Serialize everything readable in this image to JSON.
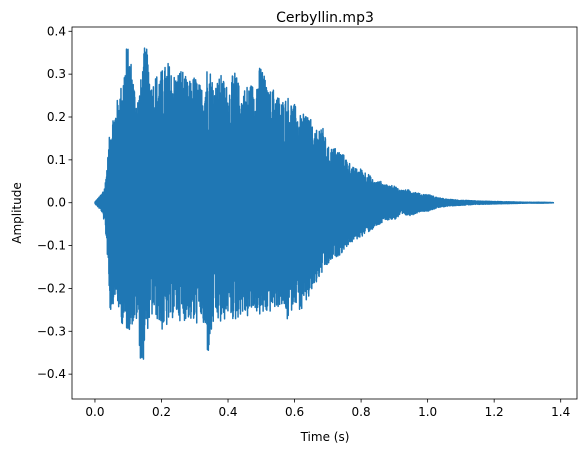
{
  "chart_data": {
    "type": "line",
    "title": "Cerbyllin.mp3",
    "xlabel": "Time (s)",
    "ylabel": "Amplitude",
    "xlim": [
      -0.069,
      1.449
    ],
    "ylim": [
      -0.458,
      0.41
    ],
    "xticks": [
      0.0,
      0.2,
      0.4,
      0.6,
      0.8,
      1.0,
      1.2,
      1.4
    ],
    "xtick_labels": [
      "0.0",
      "0.2",
      "0.4",
      "0.6",
      "0.8",
      "1.0",
      "1.2",
      "1.4"
    ],
    "yticks": [
      -0.4,
      -0.3,
      -0.2,
      -0.1,
      0.0,
      0.1,
      0.2,
      0.3,
      0.4
    ],
    "ytick_labels": [
      "−0.4",
      "−0.3",
      "−0.2",
      "−0.1",
      "0.0",
      "0.1",
      "0.2",
      "0.3",
      "0.4"
    ],
    "grid": false,
    "legend": false,
    "series_color": "#1f77b4",
    "series": [
      {
        "x": [
          0.0,
          0.02,
          0.03,
          0.04,
          0.045,
          0.05,
          0.06,
          0.07,
          0.08,
          0.09,
          0.095,
          0.1,
          0.11,
          0.12,
          0.13,
          0.14,
          0.15,
          0.16,
          0.17,
          0.18,
          0.2,
          0.22,
          0.24,
          0.26,
          0.28,
          0.3,
          0.32,
          0.34,
          0.36,
          0.38,
          0.4,
          0.42,
          0.44,
          0.46,
          0.48,
          0.5,
          0.52,
          0.54,
          0.56,
          0.58,
          0.6,
          0.62,
          0.64,
          0.66,
          0.68,
          0.7,
          0.72,
          0.74,
          0.76,
          0.78,
          0.8,
          0.82,
          0.84,
          0.86,
          0.88,
          0.9,
          0.92,
          0.95,
          0.98,
          1.0,
          1.03,
          1.06,
          1.1,
          1.15,
          1.2,
          1.25,
          1.3,
          1.35,
          1.38
        ],
        "max": [
          0.002,
          0.02,
          0.04,
          0.12,
          0.17,
          0.2,
          0.22,
          0.25,
          0.28,
          0.33,
          0.37,
          0.36,
          0.33,
          0.27,
          0.25,
          0.3,
          0.37,
          0.35,
          0.28,
          0.3,
          0.31,
          0.33,
          0.3,
          0.32,
          0.28,
          0.3,
          0.27,
          0.33,
          0.28,
          0.3,
          0.27,
          0.31,
          0.26,
          0.28,
          0.28,
          0.33,
          0.26,
          0.27,
          0.24,
          0.25,
          0.23,
          0.2,
          0.22,
          0.16,
          0.19,
          0.13,
          0.13,
          0.12,
          0.1,
          0.08,
          0.08,
          0.07,
          0.05,
          0.05,
          0.04,
          0.04,
          0.03,
          0.03,
          0.02,
          0.02,
          0.012,
          0.008,
          0.006,
          0.004,
          0.003,
          0.002,
          0.001,
          0.001,
          0.0
        ],
        "min": [
          -0.002,
          -0.02,
          -0.05,
          -0.15,
          -0.26,
          -0.25,
          -0.22,
          -0.25,
          -0.28,
          -0.3,
          -0.3,
          -0.3,
          -0.29,
          -0.28,
          -0.28,
          -0.42,
          -0.33,
          -0.29,
          -0.27,
          -0.26,
          -0.3,
          -0.29,
          -0.26,
          -0.28,
          -0.27,
          -0.29,
          -0.27,
          -0.36,
          -0.27,
          -0.29,
          -0.26,
          -0.28,
          -0.26,
          -0.27,
          -0.25,
          -0.27,
          -0.26,
          -0.25,
          -0.24,
          -0.28,
          -0.23,
          -0.26,
          -0.23,
          -0.2,
          -0.17,
          -0.15,
          -0.13,
          -0.12,
          -0.1,
          -0.09,
          -0.08,
          -0.07,
          -0.06,
          -0.05,
          -0.04,
          -0.04,
          -0.03,
          -0.03,
          -0.02,
          -0.02,
          -0.012,
          -0.008,
          -0.006,
          -0.004,
          -0.003,
          -0.002,
          -0.001,
          -0.001,
          0.0
        ]
      }
    ]
  }
}
